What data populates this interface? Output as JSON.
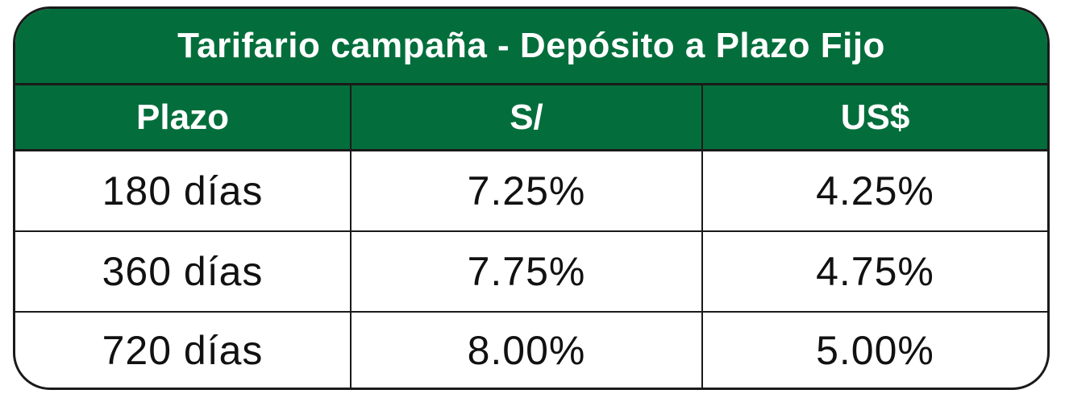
{
  "table": {
    "title": "Tarifario campaña - Depósito a Plazo Fijo",
    "headers": [
      "Plazo",
      "S/",
      "US$"
    ],
    "rows": [
      [
        "180 días",
        "7.25%",
        "4.25%"
      ],
      [
        "360 días",
        "7.75%",
        "4.75%"
      ],
      [
        "720 días",
        "8.00%",
        "5.00%"
      ]
    ]
  },
  "colors": {
    "header_green": "#036e3b",
    "border": "#1a1a1a",
    "text_dark": "#111111",
    "text_light": "#ffffff"
  }
}
